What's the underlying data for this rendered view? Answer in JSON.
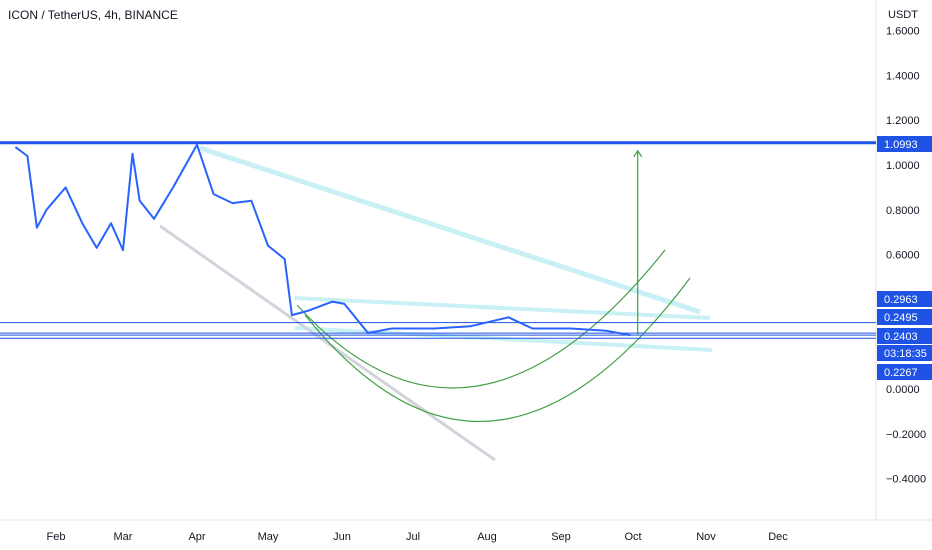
{
  "header": {
    "symbol_title": "ICON / TetherUS, 4h, BINANCE"
  },
  "price_axis": {
    "currency": "USDT",
    "ticks": [
      "1.6000",
      "1.4000",
      "1.2000",
      "1.0000",
      "0.8000",
      "0.6000",
      "0.0000",
      "−0.2000",
      "−0.4000"
    ],
    "tick_values": [
      1.6,
      1.4,
      1.2,
      1.0,
      0.8,
      0.6,
      0.0,
      -0.2,
      -0.4
    ]
  },
  "time_axis": {
    "labels": [
      "Feb",
      "Mar",
      "Apr",
      "May",
      "Jun",
      "Jul",
      "Aug",
      "Sep",
      "Oct",
      "Nov",
      "Dec"
    ]
  },
  "price_tags": [
    {
      "value": "1.0993",
      "price": 1.0993,
      "color": "#1e53e5"
    },
    {
      "value": "0.2963",
      "price": 0.2963,
      "color": "#1e53e5"
    },
    {
      "value": "0.2495",
      "price": 0.2495,
      "color": "#1e53e5"
    },
    {
      "value": "0.2403",
      "price": 0.2403,
      "color": "#1e53e5"
    },
    {
      "value": "03:18:35",
      "price": 0.19,
      "color": "#1e53e5"
    },
    {
      "value": "0.2267",
      "price": 0.2267,
      "color": "#1e53e5"
    }
  ],
  "chart_data": {
    "type": "line",
    "title": "ICON / TetherUS, 4h, BINANCE",
    "ylabel": "USDT",
    "ylim": [
      -0.6,
      1.65
    ],
    "x_categories": [
      "Feb",
      "Mar",
      "Apr",
      "May",
      "Jun",
      "Jul",
      "Aug",
      "Sep",
      "Oct",
      "Nov",
      "Dec"
    ],
    "series": [
      {
        "color": "#2962ff",
        "points": [
          [
            "Jan 15",
            1.08
          ],
          [
            "Jan 20",
            1.04
          ],
          [
            "Jan 24",
            0.72
          ],
          [
            "Jan 28",
            0.8
          ],
          [
            "Feb 5",
            0.9
          ],
          [
            "Feb 12",
            0.74
          ],
          [
            "Feb 18",
            0.63
          ],
          [
            "Feb 24",
            0.74
          ],
          [
            "Mar 1",
            0.62
          ],
          [
            "Mar 5",
            1.05
          ],
          [
            "Mar 8",
            0.84
          ],
          [
            "Mar 14",
            0.76
          ],
          [
            "Mar 22",
            0.9
          ],
          [
            "Apr 1",
            1.09
          ],
          [
            "Apr 8",
            0.87
          ],
          [
            "Apr 16",
            0.83
          ],
          [
            "Apr 24",
            0.84
          ],
          [
            "May 1",
            0.64
          ],
          [
            "May 8",
            0.58
          ],
          [
            "May 11",
            0.33
          ],
          [
            "May 18",
            0.35
          ],
          [
            "May 28",
            0.39
          ],
          [
            "Jun 2",
            0.38
          ],
          [
            "Jun 12",
            0.25
          ],
          [
            "Jun 22",
            0.27
          ],
          [
            "Jul 10",
            0.27
          ],
          [
            "Jul 25",
            0.28
          ],
          [
            "Aug 10",
            0.32
          ],
          [
            "Aug 20",
            0.27
          ],
          [
            "Sep 5",
            0.27
          ],
          [
            "Sep 20",
            0.26
          ],
          [
            "Sep 30",
            0.24
          ]
        ]
      }
    ],
    "horizontal_levels": [
      1.0993,
      0.2963,
      0.2495,
      0.2403,
      0.2267
    ],
    "projection_arrow": {
      "from": [
        "Oct 3",
        0.24
      ],
      "to": [
        "Oct 3",
        1.0993
      ],
      "color": "#43a047"
    },
    "grid": false
  }
}
